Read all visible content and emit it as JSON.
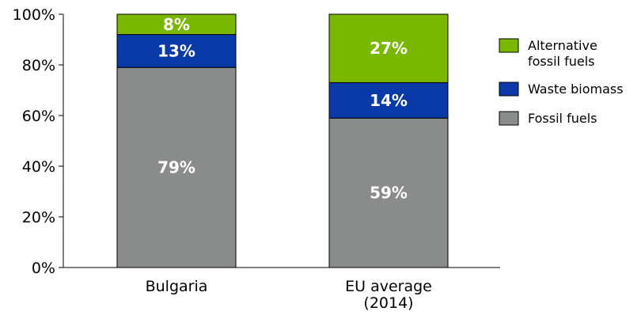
{
  "chart_data": {
    "type": "bar",
    "stacked": true,
    "categories": [
      [
        "Bulgaria"
      ],
      [
        "EU average",
        "(2014)"
      ]
    ],
    "series": [
      {
        "name": "Fossil fuels",
        "color": "#8a8c8c",
        "values": [
          79,
          59
        ],
        "labels": [
          "79%",
          "59%"
        ]
      },
      {
        "name": "Waste biomass",
        "color": "#0a3aa8",
        "values": [
          13,
          14
        ],
        "labels": [
          "13%",
          "14%"
        ]
      },
      {
        "name": "Alternative fossil fuels",
        "legend_lines": [
          "Alternative",
          "fossil fuels"
        ],
        "color": "#7ab800",
        "values": [
          8,
          27
        ],
        "labels": [
          "8%",
          "27%"
        ]
      }
    ],
    "ylim": [
      0,
      100
    ],
    "yticks": [
      0,
      20,
      40,
      60,
      80,
      100
    ],
    "ytick_labels": [
      "0%",
      "20%",
      "40%",
      "60%",
      "80%",
      "100%"
    ],
    "legend_order": [
      2,
      1,
      0
    ],
    "legend": "right",
    "grid": false
  }
}
